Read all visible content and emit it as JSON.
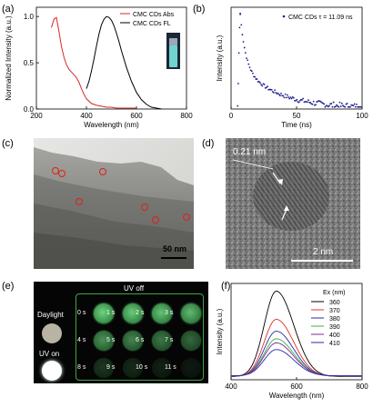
{
  "panels": {
    "a": {
      "label": "(a)",
      "chart_data": {
        "type": "line",
        "xlabel": "Wavelength (nm)",
        "ylabel": "Normalized Intensity (a.u.)",
        "xlim": [
          200,
          800
        ],
        "ylim": [
          0,
          1.1
        ],
        "xticks": [
          "200",
          "400",
          "600",
          "800"
        ],
        "yticks": [
          "0.0",
          "0.5",
          "1.0"
        ],
        "legend_position": "top-right",
        "series": [
          {
            "name": "CMC CDs Abs",
            "color": "#d62728",
            "x": [
              260,
              270,
              280,
              290,
              300,
              310,
              320,
              330,
              340,
              350,
              360,
              370,
              380,
              390,
              400,
              420,
              440,
              460,
              480,
              500,
              520,
              540,
              560,
              580,
              600
            ],
            "y": [
              0.88,
              0.97,
              0.99,
              0.84,
              0.68,
              0.56,
              0.48,
              0.43,
              0.4,
              0.37,
              0.34,
              0.29,
              0.22,
              0.16,
              0.11,
              0.06,
              0.04,
              0.03,
              0.02,
              0.02,
              0.01,
              0.01,
              0.01,
              0.01,
              0.01
            ]
          },
          {
            "name": "CMC CDs FL",
            "color": "#000000",
            "x": [
              400,
              410,
              420,
              430,
              440,
              450,
              460,
              470,
              480,
              490,
              500,
              510,
              520,
              530,
              540,
              560,
              580,
              600,
              620,
              640,
              660,
              680,
              700
            ],
            "y": [
              0.22,
              0.3,
              0.41,
              0.54,
              0.68,
              0.81,
              0.91,
              0.97,
              1.0,
              0.99,
              0.96,
              0.9,
              0.82,
              0.73,
              0.63,
              0.45,
              0.3,
              0.18,
              0.1,
              0.05,
              0.02,
              0.01,
              0.0
            ]
          }
        ]
      }
    },
    "b": {
      "label": "(b)",
      "chart_data": {
        "type": "scatter",
        "xlabel": "Time (ns)",
        "ylabel": "Intensity (a.u.)",
        "xlim": [
          0,
          100
        ],
        "xticks": [
          "0",
          "50",
          "100"
        ],
        "legend_position": "top-right",
        "series": [
          {
            "name": "CMC CDs   τ = 11.09 ns",
            "color": "#1f1f8f",
            "tau": 11.09
          }
        ]
      }
    },
    "c": {
      "label": "(c)",
      "scale_bar": "50 nm"
    },
    "d": {
      "label": "(d)",
      "lattice": "0.21 nm",
      "scale_bar": "2 nm"
    },
    "e": {
      "label": "(e)",
      "uv_off": "UV off",
      "daylight": "Daylight",
      "uv_on": "UV on",
      "rows": [
        {
          "labels": [
            "0 s",
            "1 s",
            "2 s",
            "3 s"
          ],
          "glow": [
            0.92,
            0.88,
            0.84,
            0.8
          ]
        },
        {
          "labels": [
            "4 s",
            "5 s",
            "6 s",
            "7 s"
          ],
          "glow": [
            0.62,
            0.56,
            0.5,
            0.44
          ]
        },
        {
          "labels": [
            "8 s",
            "9 s",
            "10 s",
            "11 s"
          ],
          "glow": [
            0.22,
            0.16,
            0.12,
            0.09
          ]
        }
      ]
    },
    "f": {
      "label": "(f)",
      "chart_data": {
        "type": "line",
        "xlabel": "Wavelength (nm)",
        "ylabel": "Intensity (a.u.)",
        "xlim": [
          400,
          800
        ],
        "xticks": [
          "400",
          "600",
          "800"
        ],
        "legend_title": "Ex (nm)",
        "legend_position": "top-right",
        "series": [
          {
            "name": "360",
            "color": "#000000",
            "peak": 1.0
          },
          {
            "name": "370",
            "color": "#e0302a",
            "peak": 0.67
          },
          {
            "name": "380",
            "color": "#2a2aa8",
            "peak": 0.53
          },
          {
            "name": "390",
            "color": "#3cb043",
            "peak": 0.44
          },
          {
            "name": "400",
            "color": "#7b2d8e",
            "peak": 0.39
          },
          {
            "name": "410",
            "color": "#2a2aa8",
            "peak": 0.31
          }
        ]
      }
    }
  }
}
